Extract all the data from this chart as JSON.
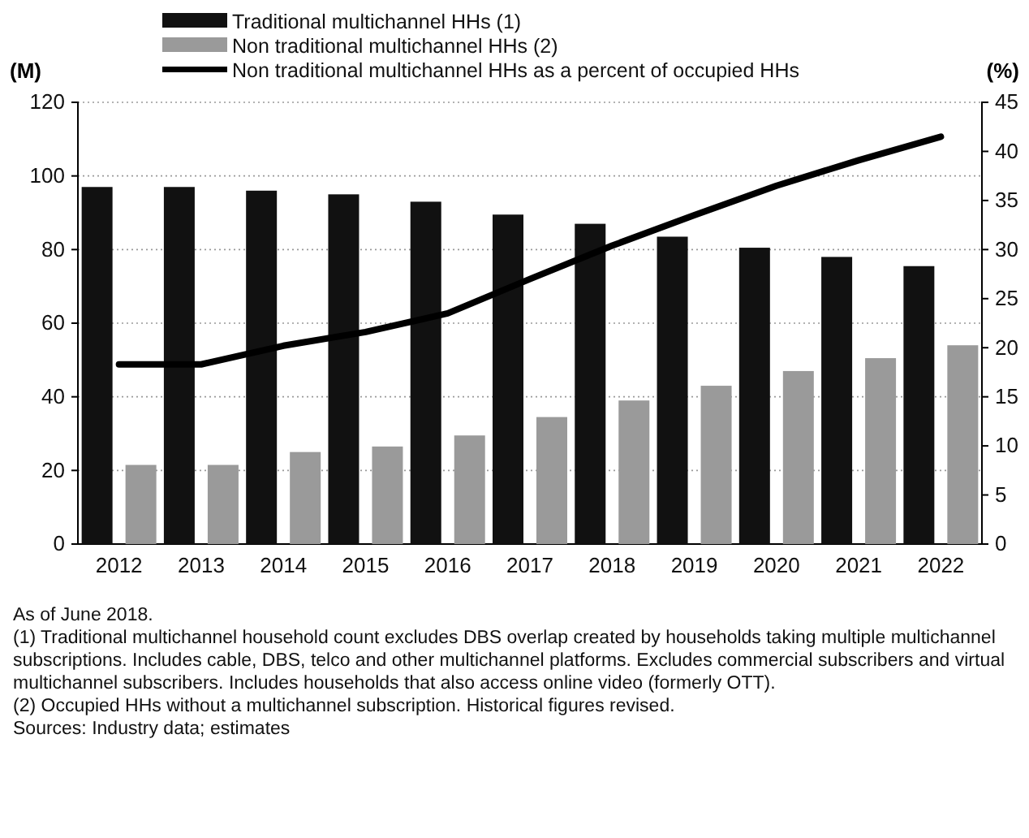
{
  "chart_data": {
    "type": "bar",
    "categories": [
      "2012",
      "2013",
      "2014",
      "2015",
      "2016",
      "2017",
      "2018",
      "2019",
      "2020",
      "2021",
      "2022"
    ],
    "ylabel": "(M)",
    "y2label": "(%)",
    "series": [
      {
        "name": "Traditional multichannel HHs (1)",
        "color": "#111111",
        "values": [
          97,
          97,
          96,
          95,
          93,
          89.5,
          87,
          83.5,
          80.5,
          78,
          75.5
        ]
      },
      {
        "name": "Non traditional multichannel HHs (2)",
        "color": "#9a9a9a",
        "values": [
          21.5,
          21.5,
          25,
          26.5,
          29.5,
          34.5,
          39,
          43,
          47,
          50.5,
          54
        ]
      },
      {
        "name": "Non traditional multichannel HHs as a percent of occupied HHs",
        "type": "line",
        "axis": "y2",
        "color": "#000000",
        "values": [
          18.3,
          18.3,
          20.2,
          21.6,
          23.5,
          27,
          30.4,
          33.5,
          36.5,
          39.1,
          41.5
        ]
      }
    ],
    "ylim": [
      0,
      120
    ],
    "yticks": [
      0,
      20,
      40,
      60,
      80,
      100,
      120
    ],
    "y2lim": [
      0,
      45
    ],
    "y2ticks": [
      0,
      5,
      10,
      15,
      20,
      25,
      30,
      35,
      40,
      45
    ],
    "grid": "y",
    "legend": "top",
    "marker": "none",
    "line_style": "solid",
    "annotations": [
      "As of June 2018.",
      "(1) Traditional multichannel household count excludes DBS overlap created by households taking multiple multichannel subscriptions. Includes cable, DBS, telco and other multichannel platforms. Excludes commercial subscribers and virtual multichannel subscribers. Includes households that also access online video (formerly OTT).",
      "(2) Occupied HHs without a multichannel subscription. Historical figures revised.",
      "Sources: Industry data; estimates"
    ]
  }
}
